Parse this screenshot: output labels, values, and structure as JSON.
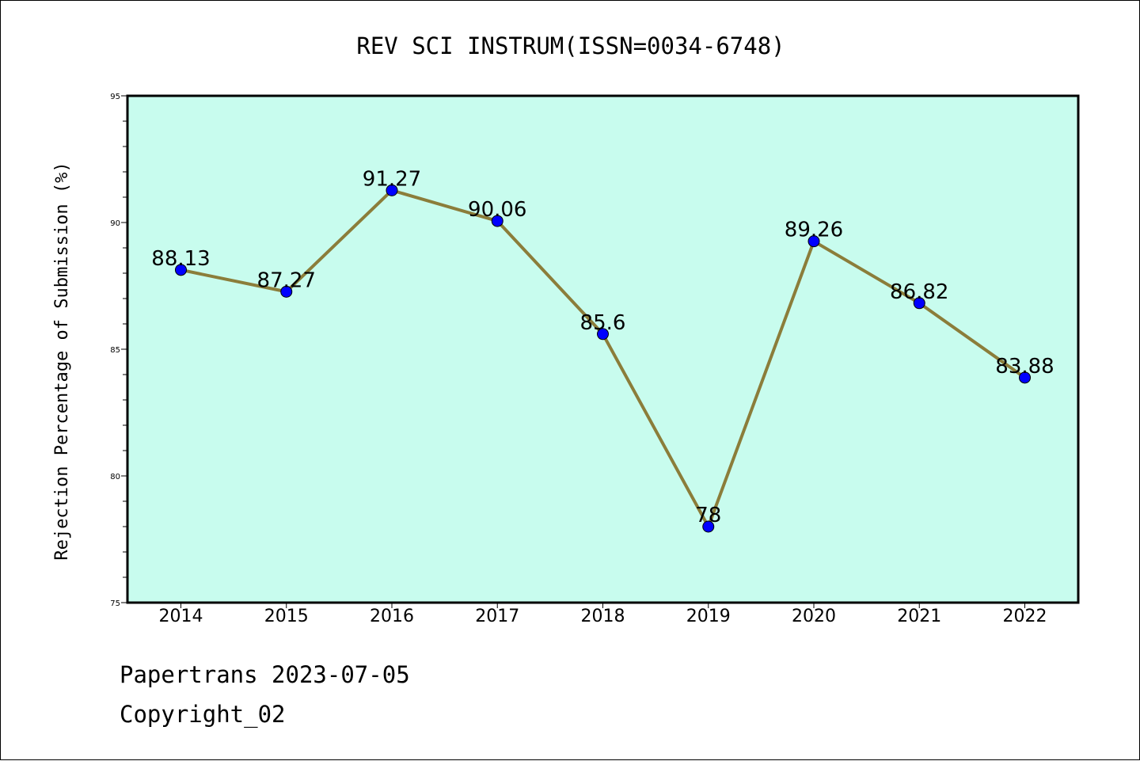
{
  "chart_data": {
    "type": "line",
    "title": "REV SCI INSTRUM(ISSN=0034-6748)",
    "xlabel": "",
    "ylabel": "Rejection Percentage of Submission (%)",
    "categories": [
      "2014",
      "2015",
      "2016",
      "2017",
      "2018",
      "2019",
      "2020",
      "2021",
      "2022"
    ],
    "series": [
      {
        "values": [
          88.13,
          87.27,
          91.27,
          90.06,
          85.6,
          78,
          89.26,
          86.82,
          83.88
        ],
        "labels": [
          "88.13",
          "87.27",
          "91.27",
          "90.06",
          "85.6",
          "78",
          "89.26",
          "86.82",
          "83.88"
        ]
      }
    ],
    "ylim": [
      75,
      95
    ],
    "yticks": [
      "75",
      "80",
      "85",
      "90",
      "95"
    ],
    "grid": false,
    "legend": "none",
    "colors": {
      "plot_background": "#c8fcee",
      "line": "#8b7d3a",
      "marker": "#0000ff"
    }
  },
  "footer": {
    "line1": "Papertrans 2023-07-05",
    "line2": "Copyright_02"
  }
}
